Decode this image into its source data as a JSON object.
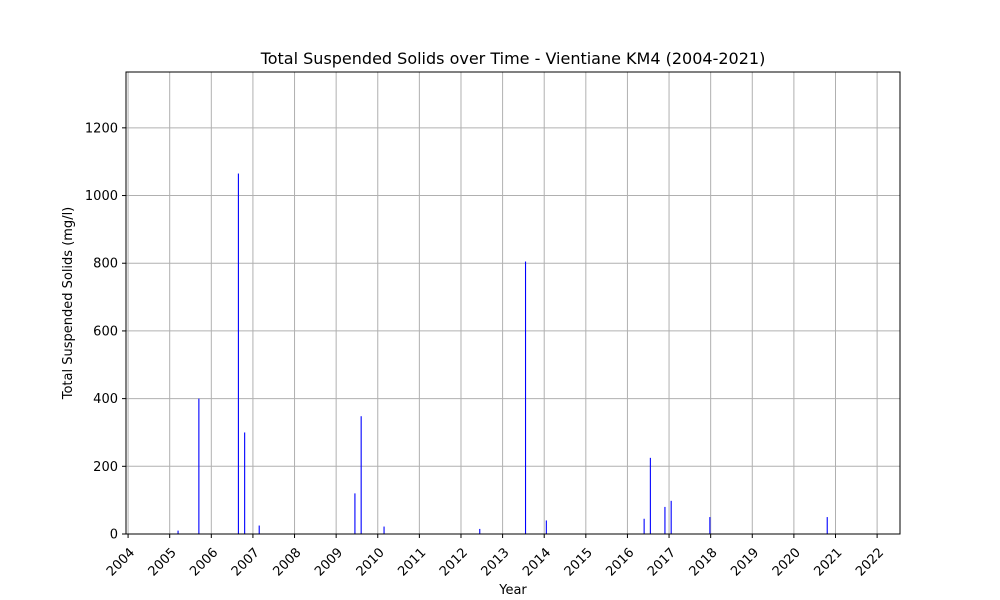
{
  "chart_data": {
    "type": "bar",
    "title": "Total Suspended Solids over Time - Vientiane KM4 (2004-2021)",
    "xlabel": "Year",
    "ylabel": "Total Suspended Solids (mg/l)",
    "x_ticks": [
      "2004",
      "2005",
      "2006",
      "2007",
      "2008",
      "2009",
      "2010",
      "2011",
      "2012",
      "2013",
      "2014",
      "2015",
      "2016",
      "2017",
      "2018",
      "2019",
      "2020",
      "2021",
      "2022"
    ],
    "y_ticks": [
      0,
      200,
      400,
      600,
      800,
      1000,
      1200
    ],
    "xlim": [
      2003.95,
      2022.55
    ],
    "ylim": [
      0,
      1365
    ],
    "grid": true,
    "bar_color": "#0000ff",
    "x": [
      2005.2,
      2005.7,
      2006.65,
      2006.8,
      2007.15,
      2009.45,
      2009.6,
      2010.15,
      2012.45,
      2013.55,
      2014.05,
      2016.4,
      2016.55,
      2016.9,
      2017.05,
      2017.98,
      2020.8
    ],
    "values": [
      10,
      400,
      1065,
      300,
      25,
      120,
      348,
      22,
      15,
      805,
      40,
      45,
      225,
      80,
      98,
      50,
      50
    ]
  }
}
